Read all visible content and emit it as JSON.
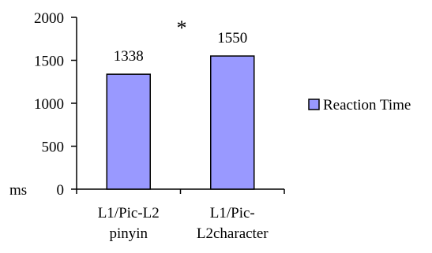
{
  "chart_data": {
    "type": "bar",
    "categories": [
      [
        "L1/Pic-L2",
        "pinyin"
      ],
      [
        "L1/Pic-",
        "L2character"
      ]
    ],
    "series": [
      {
        "name": "Reaction Time",
        "values": [
          1338,
          1550
        ],
        "color": "#9999ff"
      }
    ],
    "data_labels": [
      "1338",
      "1550"
    ],
    "ylabel": "ms",
    "ylim": [
      0,
      2000
    ],
    "yticks": [
      0,
      500,
      1000,
      1500,
      2000
    ],
    "ytick_labels": [
      "0",
      "500",
      "1000",
      "1500",
      "2000"
    ],
    "annotation": "*",
    "grid": false,
    "legend": "right"
  }
}
